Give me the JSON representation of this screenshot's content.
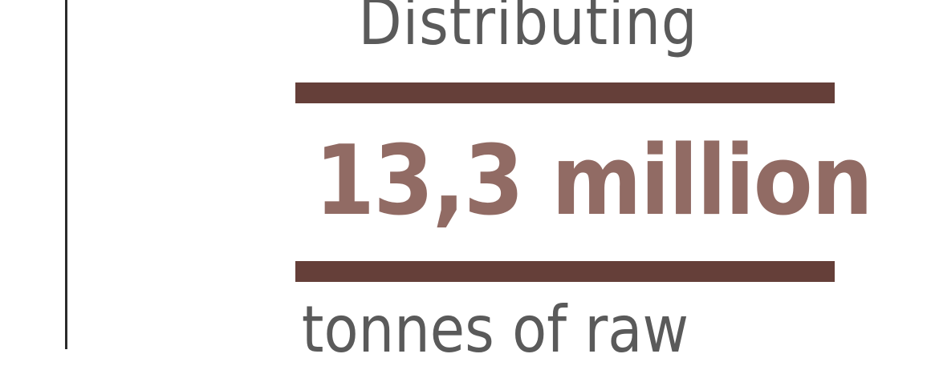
{
  "headline": {
    "intro": "Distributing",
    "figure": "13,3 million",
    "unit_line": "tonnes of raw"
  },
  "colors": {
    "rule": "#653f39",
    "figure": "#916b64",
    "text": "#5a5a5a",
    "divider": "#2b2b2b"
  }
}
